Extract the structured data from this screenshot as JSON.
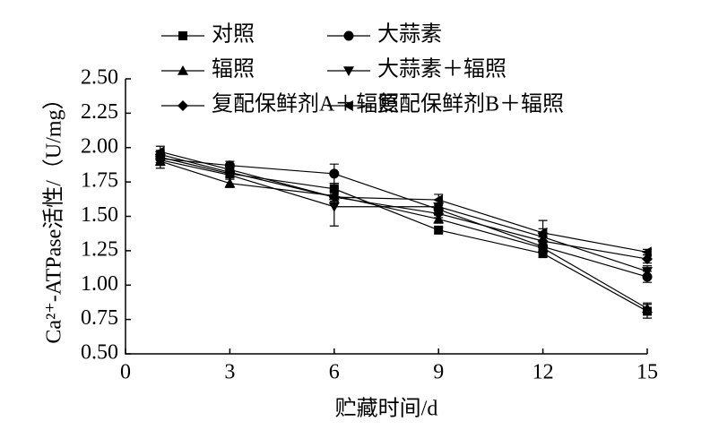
{
  "chart_data": {
    "type": "line",
    "x_label": "贮藏时间/d",
    "y_label": "Ca²⁺-ATPase活性/（U/mg）",
    "x": [
      1,
      3,
      6,
      9,
      12,
      15
    ],
    "xlim": [
      0,
      15
    ],
    "xticks": [
      0,
      3,
      6,
      9,
      12,
      15
    ],
    "ylim": [
      0.5,
      2.5
    ],
    "yticks": [
      {
        "value": 0.5,
        "label": "0.50"
      },
      {
        "value": 0.75,
        "label": "0.75"
      },
      {
        "value": 1,
        "label": "1.00"
      },
      {
        "value": 1.25,
        "label": "1.25"
      },
      {
        "value": 1.5,
        "label": "1.50"
      },
      {
        "value": 1.75,
        "label": "1.75"
      },
      {
        "value": 2,
        "label": "2.00"
      },
      {
        "value": 2.25,
        "label": "2.25"
      },
      {
        "value": 2.5,
        "label": "2.50"
      }
    ],
    "series": [
      {
        "name": "对照",
        "color": "#000000",
        "marker": "square",
        "values": [
          1.93,
          1.81,
          1.7,
          1.4,
          1.23,
          0.81
        ],
        "errors": [
          0.04,
          0.03,
          0.04,
          0.02,
          0.03,
          0.05
        ]
      },
      {
        "name": "大蒜素",
        "color": "#000000",
        "marker": "circle",
        "values": [
          1.92,
          1.87,
          1.81,
          1.55,
          1.28,
          1.06
        ],
        "errors": [
          0.03,
          0.03,
          0.07,
          0.04,
          0.03,
          0.04
        ]
      },
      {
        "name": "辐照",
        "color": "#000000",
        "marker": "triangle-up",
        "values": [
          1.9,
          1.74,
          1.65,
          1.48,
          1.27,
          0.83
        ],
        "errors": [
          0.05,
          0.03,
          0.04,
          0.03,
          0.03,
          0.04
        ]
      },
      {
        "name": "大蒜素＋辐照",
        "color": "#000000",
        "marker": "triangle-down",
        "values": [
          1.91,
          1.8,
          1.57,
          1.57,
          1.35,
          1.1
        ],
        "errors": [
          0.04,
          0.03,
          0.14,
          0.05,
          0.12,
          0.04
        ]
      },
      {
        "name": "复配保鲜剂A＋辐照",
        "color": "#000000",
        "marker": "diamond",
        "values": [
          1.95,
          1.82,
          1.64,
          1.52,
          1.32,
          1.19
        ],
        "errors": [
          0.03,
          0.03,
          0.04,
          0.03,
          0.03,
          0.03
        ]
      },
      {
        "name": "复配保鲜剂B＋辐照",
        "color": "#000000",
        "marker": "triangle-left",
        "values": [
          1.97,
          1.84,
          1.64,
          1.62,
          1.38,
          1.24
        ],
        "errors": [
          0.04,
          0.03,
          0.04,
          0.04,
          0.03,
          0.02
        ]
      }
    ]
  }
}
